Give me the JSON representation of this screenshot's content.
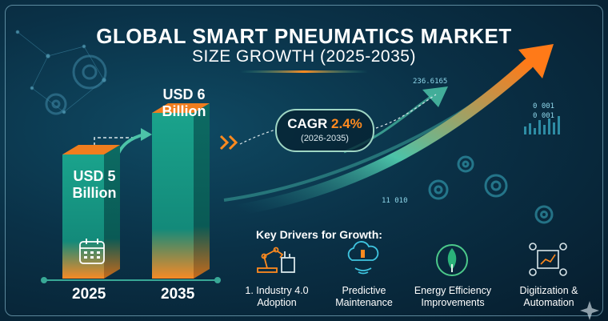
{
  "title": "GLOBAL SMART PNEUMATICS MARKET",
  "subtitle": "SIZE GROWTH (2025-2035)",
  "chart_data": {
    "type": "bar",
    "categories": [
      "2025",
      "2035"
    ],
    "values": [
      5,
      6
    ],
    "unit": "USD Billion",
    "value_labels": [
      {
        "line1": "USD 5",
        "line2": "Billion"
      },
      {
        "line1": "USD 6",
        "line2": "Billion"
      }
    ],
    "colors": {
      "bar_front": "#17a08a",
      "bar_side": "#0b6b63",
      "bar_top": "#f07d1e",
      "bar_bottom": "#f58a26"
    }
  },
  "cagr": {
    "label": "CAGR",
    "value": "2.4%",
    "period": "(2026-2035)"
  },
  "decor_numbers": [
    "236.6165",
    "0 001",
    "0 001",
    "11 010"
  ],
  "drivers": {
    "title": "Key Drivers for Growth:",
    "items": [
      {
        "line1": "1. Industry 4.0",
        "line2": "Adoption",
        "icon": "robot-arm-icon"
      },
      {
        "line1": "Predictive",
        "line2": "Maintenance",
        "icon": "cloud-sensor-icon"
      },
      {
        "line1": "Energy Efficiency",
        "line2": "Improvements",
        "icon": "leaf-icon"
      },
      {
        "line1": "Digitization &",
        "line2": "Automation",
        "icon": "digital-chart-icon"
      }
    ]
  },
  "colors": {
    "accent_orange": "#f58a26",
    "accent_teal": "#2bb39a",
    "background": "#0a3147"
  }
}
